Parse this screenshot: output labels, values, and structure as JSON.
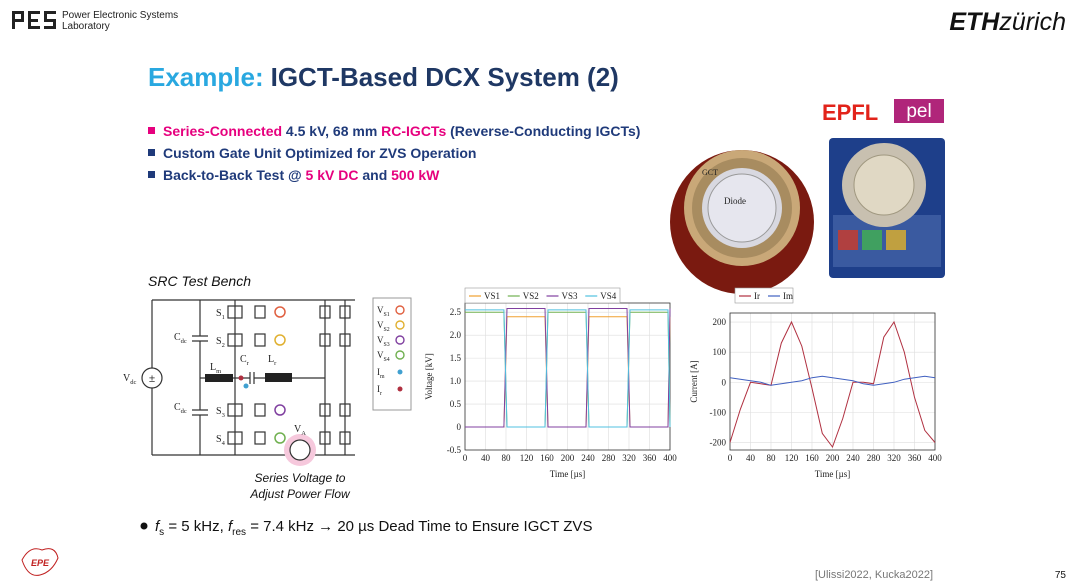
{
  "header": {
    "lab_name_line1": "Power Electronic Systems",
    "lab_name_line2": "Laboratory",
    "logo_eth": "ETH",
    "logo_zurich": "zürich"
  },
  "title": {
    "prefix": "Example:",
    "main": "IGCT-Based DCX System (2)"
  },
  "bullets": [
    {
      "marker_color": "#e6007e",
      "segments": [
        {
          "text": "Series-Connected",
          "color": "#e6007e"
        },
        {
          "text": " 4.5 kV, 68 mm ",
          "color": "#1f3a7a"
        },
        {
          "text": "RC-IGCTs",
          "color": "#e6007e"
        },
        {
          "text": " (Reverse-Conducting IGCTs)",
          "color": "#1f3a7a"
        }
      ]
    },
    {
      "marker_color": "#1f3a7a",
      "segments": [
        {
          "text": "Custom Gate Unit Optimized for ZVS Operation",
          "color": "#1f3a7a"
        }
      ]
    },
    {
      "marker_color": "#1f3a7a",
      "segments": [
        {
          "text": "Back-to-Back Test @ ",
          "color": "#1f3a7a"
        },
        {
          "text": "5 kV DC",
          "color": "#e6007e"
        },
        {
          "text": " and ",
          "color": "#1f3a7a"
        },
        {
          "text": "500 kW",
          "color": "#e6007e"
        }
      ]
    }
  ],
  "photo_labels": {
    "epfl": "EPFL",
    "pel": "pel",
    "gct": "GCT",
    "diode": "Diode"
  },
  "schematic": {
    "title": "SRC Test Bench",
    "labels": [
      {
        "main": "C",
        "sub": "dc"
      },
      {
        "main": "C",
        "sub": "dc"
      },
      {
        "main": "S",
        "sub": "1"
      },
      {
        "main": "S",
        "sub": "2"
      },
      {
        "main": "S",
        "sub": "3"
      },
      {
        "main": "S",
        "sub": "4"
      },
      {
        "main": "C",
        "sub": "r"
      },
      {
        "main": "L",
        "sub": "r"
      },
      {
        "main": "L",
        "sub": "m"
      },
      {
        "main": "V",
        "sub": "dc"
      },
      {
        "main": "V",
        "sub": "A"
      }
    ],
    "legend": [
      {
        "main": "V",
        "sub": "S1"
      },
      {
        "main": "V",
        "sub": "S2"
      },
      {
        "main": "V",
        "sub": "S3"
      },
      {
        "main": "V",
        "sub": "S4"
      },
      {
        "main": "I",
        "sub": "m"
      },
      {
        "main": "I",
        "sub": "r"
      }
    ],
    "caption_line1": "Series Voltage to",
    "caption_line2": "Adjust Power Flow"
  },
  "chart_data": [
    {
      "type": "line",
      "x_label": "Time [µs]",
      "y_label": "Voltage [kV]",
      "x": [
        0,
        76,
        82,
        156,
        162,
        236,
        242,
        316,
        322,
        396,
        400
      ],
      "series": [
        {
          "name": "VS1",
          "color": "#f0a030",
          "values": [
            0,
            0,
            2.4,
            2.4,
            0,
            0,
            2.4,
            2.4,
            0,
            0,
            2.4
          ]
        },
        {
          "name": "VS2",
          "color": "#70b050",
          "values": [
            2.5,
            2.5,
            0,
            0,
            2.5,
            2.5,
            0,
            0,
            2.5,
            2.5,
            0
          ]
        },
        {
          "name": "VS3",
          "color": "#8040a0",
          "values": [
            0,
            0,
            2.58,
            2.58,
            0,
            0,
            2.58,
            2.58,
            0,
            0,
            2.58
          ]
        },
        {
          "name": "VS4",
          "color": "#50c0e0",
          "values": [
            2.55,
            2.55,
            0,
            0,
            2.55,
            2.55,
            0,
            0,
            2.55,
            2.55,
            0
          ]
        }
      ],
      "xlim": [
        0,
        400
      ],
      "xticks": [
        0,
        40,
        80,
        120,
        160,
        200,
        240,
        280,
        320,
        360,
        400
      ],
      "ylim": [
        -0.5,
        2.7
      ],
      "yticks": [
        -0.5,
        0,
        0.5,
        {
          "value": 1,
          "label": "1.0"
        },
        1.5,
        {
          "value": 2,
          "label": "2.0"
        },
        2.5
      ],
      "grid": true
    },
    {
      "type": "line",
      "x_label": "Time [µs]",
      "y_label": "Current [A]",
      "x": [
        0,
        20,
        40,
        60,
        80,
        100,
        120,
        140,
        160,
        180,
        200,
        220,
        240,
        260,
        280,
        300,
        320,
        340,
        360,
        380,
        400
      ],
      "series": [
        {
          "name": "Ir",
          "color": "#b03040",
          "values": [
            -200,
            -90,
            0,
            -5,
            -10,
            130,
            200,
            120,
            -20,
            -170,
            -215,
            -120,
            0,
            0,
            -5,
            150,
            200,
            100,
            -50,
            -160,
            -200
          ]
        },
        {
          "name": "Im",
          "color": "#4060c0",
          "values": [
            15,
            10,
            5,
            0,
            -10,
            -5,
            0,
            5,
            15,
            20,
            15,
            10,
            5,
            -5,
            -10,
            -5,
            0,
            10,
            15,
            20,
            15
          ]
        }
      ],
      "xlim": [
        0,
        400
      ],
      "xticks": [
        0,
        40,
        80,
        120,
        160,
        200,
        240,
        280,
        320,
        360,
        400
      ],
      "ylim": [
        -225,
        230
      ],
      "yticks": [
        -200,
        -100,
        0,
        100,
        200
      ],
      "grid": true
    }
  ],
  "bottom_bullet": [
    {
      "text": "f",
      "style": "italic"
    },
    {
      "text": "s",
      "style": "sub"
    },
    {
      "text": " = 5 kHz, ",
      "style": "normal"
    },
    {
      "text": "f",
      "style": "italic"
    },
    {
      "text": "res",
      "style": "sub"
    },
    {
      "text": " = 7.4 kHz → 20 µs Dead Time to Ensure IGCT ZVS",
      "style": "normal"
    }
  ],
  "footer": {
    "epe": "EPE",
    "reference": "[Ulissi2022, Kucka2022]",
    "page": "75"
  }
}
